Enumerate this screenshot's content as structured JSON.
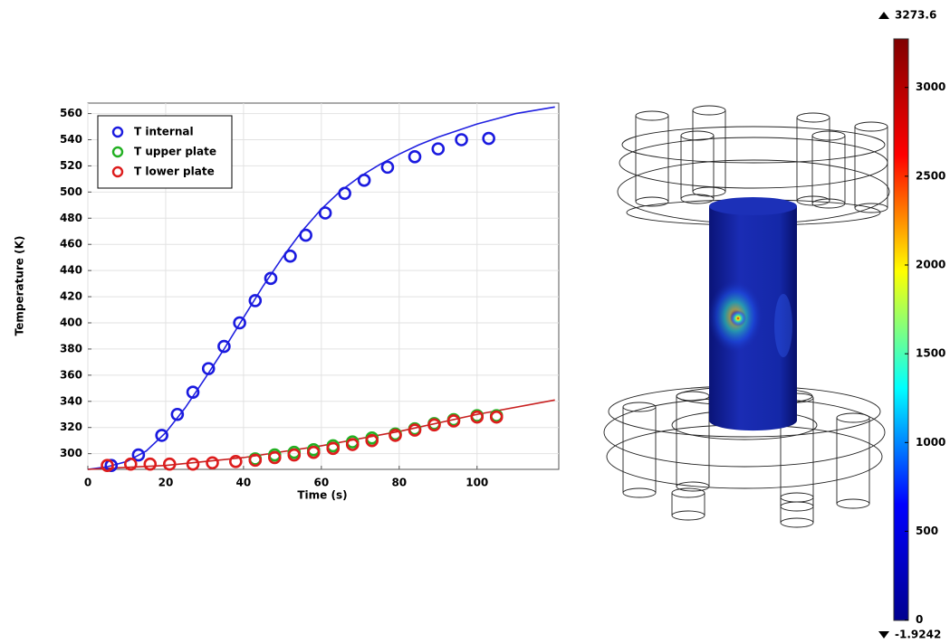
{
  "chart_data": [
    {
      "type": "scatter-line",
      "xlabel": "Time (s)",
      "ylabel": "Temperature (K)",
      "xlim": [
        0,
        121
      ],
      "ylim": [
        288,
        568
      ],
      "xticks": [
        0,
        20,
        40,
        60,
        80,
        100
      ],
      "yticks": [
        300,
        320,
        340,
        360,
        380,
        400,
        420,
        440,
        460,
        480,
        500,
        520,
        540,
        560
      ],
      "grid": true,
      "legend": "upper left",
      "series": [
        {
          "name": "T internal",
          "color": "#1a1adf",
          "x": [
            6,
            13,
            19,
            23,
            27,
            31,
            35,
            39,
            43,
            47,
            52,
            56,
            61,
            66,
            71,
            77,
            84,
            90,
            96,
            103
          ],
          "values": [
            291,
            299,
            314,
            330,
            347,
            365,
            382,
            400,
            417,
            434,
            451,
            467,
            484,
            499,
            509,
            519,
            527,
            533,
            540,
            541
          ]
        },
        {
          "name": "T upper plate",
          "color": "#22b022",
          "x": [
            43,
            48,
            53,
            58,
            63,
            68,
            73,
            79,
            84,
            89,
            94,
            100,
            105
          ],
          "values": [
            296,
            299,
            301,
            303,
            306,
            309,
            312,
            315,
            319,
            323,
            326,
            329,
            329
          ]
        },
        {
          "name": "T lower plate",
          "color": "#dd1c1c",
          "x": [
            5,
            11,
            16,
            21,
            27,
            32,
            38,
            43,
            48,
            53,
            58,
            63,
            68,
            73,
            79,
            84,
            89,
            94,
            100,
            105
          ],
          "values": [
            291,
            292,
            292,
            292,
            292,
            293,
            294,
            295,
            297,
            299,
            301,
            304,
            307,
            310,
            314,
            318,
            322,
            325,
            328,
            328
          ]
        }
      ],
      "fit_lines": [
        {
          "color": "#2020e0",
          "x": [
            0,
            5,
            10,
            15,
            20,
            25,
            30,
            35,
            40,
            45,
            50,
            55,
            60,
            65,
            70,
            75,
            80,
            85,
            90,
            95,
            100,
            105,
            110,
            120
          ],
          "values": [
            288,
            290,
            294,
            302,
            316,
            335,
            357,
            380,
            404,
            428,
            450,
            470,
            487,
            501,
            512,
            521,
            529,
            536,
            542,
            547,
            552,
            556,
            560,
            565
          ]
        },
        {
          "color": "#c82020",
          "x": [
            0,
            20,
            40,
            60,
            80,
            100,
            120
          ],
          "values": [
            288,
            291,
            297,
            306,
            317,
            330,
            341
          ]
        }
      ]
    },
    {
      "type": "colorbar",
      "min": -1.9242,
      "max": 3273.6,
      "ticks": [
        0,
        500,
        1000,
        1500,
        2000,
        2500,
        3000
      ],
      "colors": [
        "#00008f",
        "#0000ff",
        "#00ffff",
        "#ffff00",
        "#ff0000",
        "#800000"
      ]
    }
  ]
}
